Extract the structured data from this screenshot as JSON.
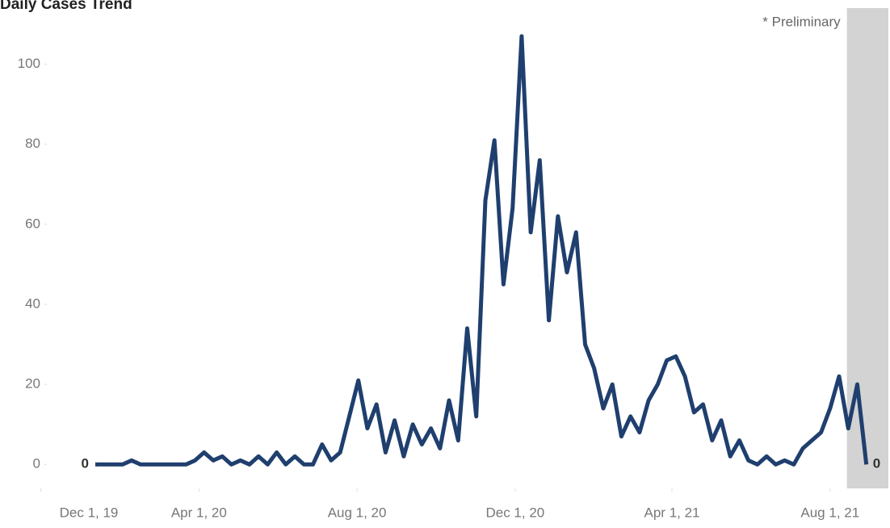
{
  "chart_data": {
    "type": "line",
    "title": "Daily Cases Trend",
    "annotation": "* Preliminary",
    "preliminary_start": "2021-08-14",
    "x": [
      "2020-01-12",
      "2020-01-19",
      "2020-01-26",
      "2020-02-02",
      "2020-02-09",
      "2020-02-16",
      "2020-02-23",
      "2020-03-01",
      "2020-03-08",
      "2020-03-15",
      "2020-03-22",
      "2020-03-29",
      "2020-04-05",
      "2020-04-12",
      "2020-04-19",
      "2020-04-26",
      "2020-05-03",
      "2020-05-10",
      "2020-05-17",
      "2020-05-24",
      "2020-05-31",
      "2020-06-07",
      "2020-06-14",
      "2020-06-21",
      "2020-06-28",
      "2020-07-05",
      "2020-07-12",
      "2020-07-19",
      "2020-07-26",
      "2020-08-02",
      "2020-08-09",
      "2020-08-16",
      "2020-08-23",
      "2020-08-30",
      "2020-09-06",
      "2020-09-13",
      "2020-09-20",
      "2020-09-27",
      "2020-10-04",
      "2020-10-11",
      "2020-10-18",
      "2020-10-25",
      "2020-11-01",
      "2020-11-08",
      "2020-11-15",
      "2020-11-22",
      "2020-11-29",
      "2020-12-06",
      "2020-12-13",
      "2020-12-20",
      "2020-12-27",
      "2021-01-03",
      "2021-01-10",
      "2021-01-17",
      "2021-01-24",
      "2021-01-31",
      "2021-02-07",
      "2021-02-14",
      "2021-02-21",
      "2021-02-28",
      "2021-03-07",
      "2021-03-14",
      "2021-03-21",
      "2021-03-28",
      "2021-04-04",
      "2021-04-11",
      "2021-04-18",
      "2021-04-25",
      "2021-05-02",
      "2021-05-09",
      "2021-05-16",
      "2021-05-23",
      "2021-05-30",
      "2021-06-06",
      "2021-06-13",
      "2021-06-20",
      "2021-06-27",
      "2021-07-04",
      "2021-07-11",
      "2021-07-18",
      "2021-07-25",
      "2021-08-01",
      "2021-08-08",
      "2021-08-15",
      "2021-08-22",
      "2021-08-29"
    ],
    "series": [
      {
        "name": "Daily cases",
        "color": "#1f3f6e",
        "values": [
          0,
          0,
          0,
          0,
          1,
          0,
          0,
          0,
          0,
          0,
          0,
          1,
          3,
          1,
          2,
          0,
          1,
          0,
          2,
          0,
          3,
          0,
          2,
          0,
          0,
          5,
          1,
          3,
          12,
          21,
          9,
          15,
          3,
          11,
          2,
          10,
          5,
          9,
          4,
          16,
          6,
          34,
          12,
          66,
          81,
          45,
          64,
          107,
          58,
          76,
          36,
          62,
          48,
          58,
          30,
          24,
          14,
          20,
          7,
          12,
          8,
          16,
          20,
          26,
          27,
          22,
          13,
          15,
          6,
          11,
          2,
          6,
          1,
          0,
          2,
          0,
          1,
          0,
          4,
          6,
          8,
          14,
          22,
          9,
          20,
          0
        ]
      }
    ],
    "xlim": [
      "2019-12-10",
      "2021-09-15"
    ],
    "xticks": [
      {
        "value": "2019-12-01",
        "label": "Dec 1, 19"
      },
      {
        "value": "2020-04-01",
        "label": "Apr 1, 20"
      },
      {
        "value": "2020-08-01",
        "label": "Aug 1, 20"
      },
      {
        "value": "2020-12-01",
        "label": "Dec 1, 20"
      },
      {
        "value": "2021-04-01",
        "label": "Apr 1, 21"
      },
      {
        "value": "2021-08-01",
        "label": "Aug 1, 21"
      }
    ],
    "ylim": [
      -6,
      110
    ],
    "yticks": [
      0,
      20,
      40,
      60,
      80,
      100
    ],
    "grid": false
  }
}
